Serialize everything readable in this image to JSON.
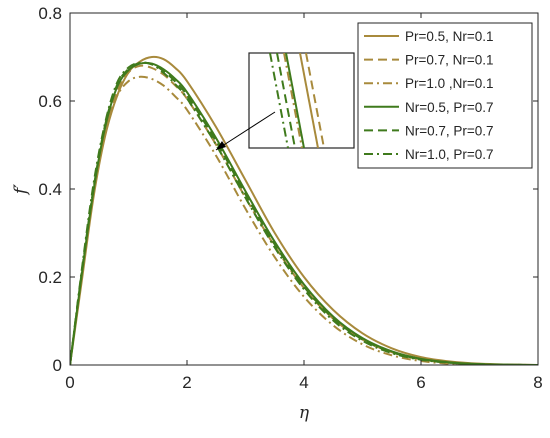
{
  "chart_data": {
    "type": "line",
    "xlabel": "η",
    "ylabel": "f′",
    "xlim": [
      0,
      8
    ],
    "ylim": [
      0,
      0.8
    ],
    "xticks": [
      0,
      2,
      4,
      6,
      8
    ],
    "yticks": [
      0,
      0.2,
      0.4,
      0.6,
      0.8
    ],
    "xtick_labels": [
      "0",
      "2",
      "4",
      "6",
      "8"
    ],
    "ytick_labels": [
      "0",
      "0.2",
      "0.4",
      "0.6",
      "0.8"
    ],
    "grid": false,
    "legend_position": "top-right",
    "inset": "zoomed view near the curve peaks, top-center, with arrow pointing to curves",
    "series": [
      {
        "name": "Pr=0.5, Nr=0.1",
        "color": "#a88a3c",
        "dash": "solid",
        "x": [
          0,
          0.2,
          0.4,
          0.6,
          0.8,
          1.0,
          1.2,
          1.4,
          1.6,
          1.8,
          2.0,
          2.5,
          3.0,
          3.5,
          4.0,
          4.5,
          5.0,
          5.5,
          6.0,
          6.5,
          7.0,
          7.5,
          8.0
        ],
        "y": [
          0,
          0.19,
          0.38,
          0.52,
          0.61,
          0.665,
          0.69,
          0.7,
          0.695,
          0.675,
          0.645,
          0.54,
          0.42,
          0.3,
          0.2,
          0.125,
          0.072,
          0.038,
          0.018,
          0.008,
          0.003,
          0.001,
          0
        ]
      },
      {
        "name": "Pr=0.7, Nr=0.1",
        "color": "#a88a3c",
        "dash": "dash",
        "x": [
          0,
          0.2,
          0.4,
          0.6,
          0.8,
          1.0,
          1.2,
          1.4,
          1.6,
          1.8,
          2.0,
          2.5,
          3.0,
          3.5,
          4.0,
          4.5,
          5.0,
          5.5,
          6.0,
          6.5,
          7.0,
          7.5,
          8.0
        ],
        "y": [
          0,
          0.2,
          0.39,
          0.53,
          0.62,
          0.665,
          0.68,
          0.675,
          0.66,
          0.635,
          0.605,
          0.5,
          0.38,
          0.27,
          0.175,
          0.105,
          0.058,
          0.029,
          0.013,
          0.005,
          0.002,
          0.0005,
          0
        ]
      },
      {
        "name": "Pr=1.0 ,Nr=0.1",
        "color": "#a88a3c",
        "dash": "dashdot",
        "x": [
          0,
          0.2,
          0.4,
          0.6,
          0.8,
          1.0,
          1.2,
          1.4,
          1.6,
          1.8,
          2.0,
          2.5,
          3.0,
          3.5,
          4.0,
          4.5,
          5.0,
          5.5,
          6.0,
          6.5,
          7.0,
          7.5,
          8.0
        ],
        "y": [
          0,
          0.21,
          0.4,
          0.53,
          0.61,
          0.645,
          0.655,
          0.65,
          0.635,
          0.61,
          0.58,
          0.475,
          0.355,
          0.245,
          0.155,
          0.09,
          0.047,
          0.022,
          0.009,
          0.003,
          0.001,
          0.0003,
          0
        ]
      },
      {
        "name": "Nr=0.5, Pr=0.7",
        "color": "#3f7a1c",
        "dash": "solid",
        "x": [
          0,
          0.2,
          0.4,
          0.6,
          0.8,
          1.0,
          1.2,
          1.4,
          1.6,
          1.8,
          2.0,
          2.5,
          3.0,
          3.5,
          4.0,
          4.5,
          5.0,
          5.5,
          6.0,
          6.5,
          7.0,
          7.5,
          8.0
        ],
        "y": [
          0,
          0.205,
          0.395,
          0.54,
          0.63,
          0.67,
          0.685,
          0.685,
          0.672,
          0.65,
          0.62,
          0.515,
          0.395,
          0.28,
          0.183,
          0.11,
          0.061,
          0.031,
          0.014,
          0.006,
          0.002,
          0.0006,
          0
        ]
      },
      {
        "name": "Nr=0.7, Pr=0.7",
        "color": "#3f7a1c",
        "dash": "dash",
        "x": [
          0,
          0.2,
          0.4,
          0.6,
          0.8,
          1.0,
          1.2,
          1.4,
          1.6,
          1.8,
          2.0,
          2.5,
          3.0,
          3.5,
          4.0,
          4.5,
          5.0,
          5.5,
          6.0,
          6.5,
          7.0,
          7.5,
          8.0
        ],
        "y": [
          0,
          0.21,
          0.4,
          0.545,
          0.635,
          0.673,
          0.686,
          0.684,
          0.668,
          0.644,
          0.613,
          0.508,
          0.388,
          0.274,
          0.178,
          0.106,
          0.058,
          0.029,
          0.013,
          0.005,
          0.002,
          0.0005,
          0
        ]
      },
      {
        "name": "Nr=1.0, Pr=0.7",
        "color": "#3f7a1c",
        "dash": "dashdot",
        "x": [
          0,
          0.2,
          0.4,
          0.6,
          0.8,
          1.0,
          1.2,
          1.4,
          1.6,
          1.8,
          2.0,
          2.5,
          3.0,
          3.5,
          4.0,
          4.5,
          5.0,
          5.5,
          6.0,
          6.5,
          7.0,
          7.5,
          8.0
        ],
        "y": [
          0,
          0.215,
          0.41,
          0.55,
          0.64,
          0.676,
          0.687,
          0.683,
          0.664,
          0.638,
          0.606,
          0.5,
          0.38,
          0.267,
          0.172,
          0.101,
          0.055,
          0.027,
          0.012,
          0.005,
          0.0015,
          0.0004,
          0
        ]
      }
    ]
  }
}
